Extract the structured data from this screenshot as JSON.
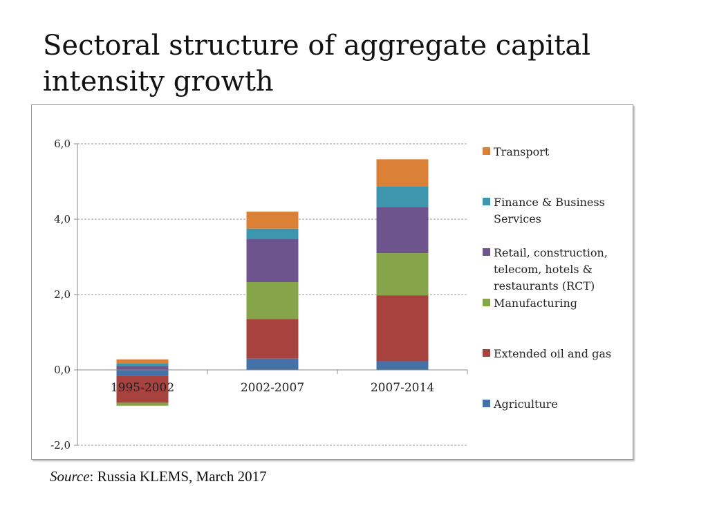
{
  "slide": {
    "title": "Sectoral structure of aggregate capital intensity growth"
  },
  "source": {
    "label": "Source",
    "text": ": Russia KLEMS, March 2017"
  },
  "chart_data": {
    "type": "bar",
    "stacked": true,
    "categories": [
      "1995-2002",
      "2002-2007",
      "2007-2014"
    ],
    "y_ticks": [
      "6,0",
      "4,0",
      "2,0",
      "0,0",
      "-2,0"
    ],
    "y_tick_values": [
      6,
      4,
      2,
      0,
      -2
    ],
    "ylim": [
      -2,
      6
    ],
    "grid": true,
    "legend_position": "right",
    "series": [
      {
        "name": "Agriculture",
        "color": "#4472a8",
        "values": [
          -0.15,
          0.3,
          0.23
        ]
      },
      {
        "name": "Extended oil and gas",
        "color": "#a8423f",
        "values": [
          -0.72,
          1.05,
          1.75
        ]
      },
      {
        "name": "Manufacturing",
        "color": "#86a44a",
        "values": [
          -0.08,
          0.98,
          1.12
        ]
      },
      {
        "name": "Retail, construction, telecom, hotels & restaurants (RCT)",
        "color": "#6e548d",
        "values": [
          0.1,
          1.15,
          1.22
        ]
      },
      {
        "name": "Finance & Business Services",
        "color": "#3d96ae",
        "values": [
          0.08,
          0.27,
          0.55
        ]
      },
      {
        "name": "Transport",
        "color": "#da8137",
        "values": [
          0.1,
          0.45,
          0.72
        ]
      }
    ],
    "legend_order": [
      5,
      4,
      3,
      2,
      1,
      0
    ]
  }
}
